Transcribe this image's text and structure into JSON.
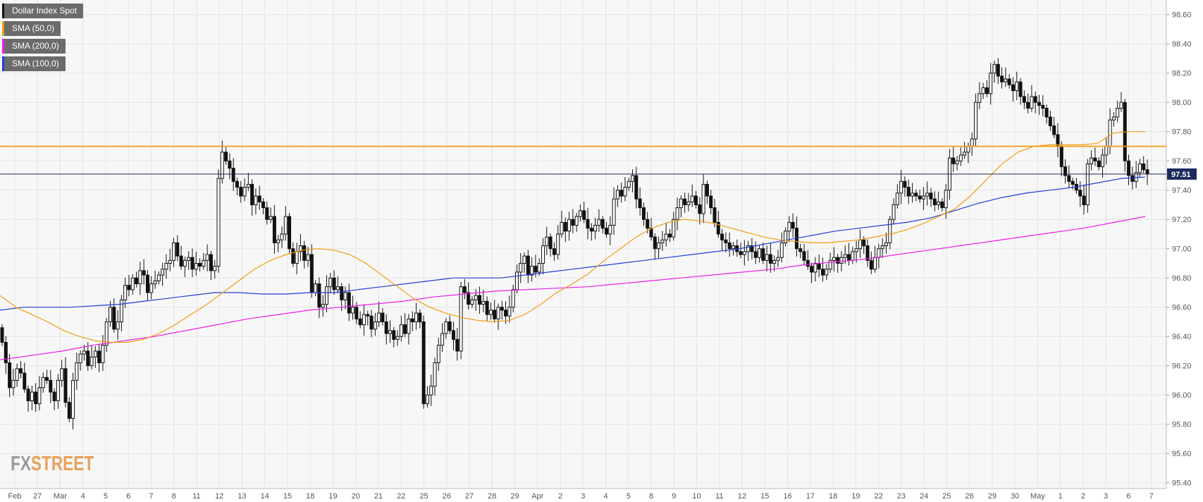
{
  "chart_data": {
    "type": "candlestick",
    "title": "Dollar Index Spot",
    "legend": [
      {
        "name": "Dollar Index Spot",
        "color": "#111111"
      },
      {
        "name": "SMA (50,0)",
        "color": "#f39c12"
      },
      {
        "name": "SMA (200,0)",
        "color": "#e91ee9"
      },
      {
        "name": "SMA (100,0)",
        "color": "#1f3fd6"
      }
    ],
    "legend_position": "top-left",
    "grid": true,
    "ylim": [
      95.36,
      98.7
    ],
    "y_ticks": [
      "98.60",
      "98.40",
      "98.20",
      "98.00",
      "97.80",
      "97.60",
      "97.40",
      "97.20",
      "97.00",
      "96.80",
      "96.60",
      "96.40",
      "96.20",
      "96.00",
      "95.80",
      "95.60",
      "95.40"
    ],
    "x_ticks": [
      "Feb",
      "27",
      "Mar",
      "4",
      "5",
      "6",
      "7",
      "8",
      "11",
      "12",
      "13",
      "14",
      "15",
      "18",
      "19",
      "20",
      "21",
      "22",
      "25",
      "26",
      "27",
      "28",
      "29",
      "Apr",
      "2",
      "3",
      "4",
      "5",
      "8",
      "9",
      "10",
      "11",
      "12",
      "15",
      "16",
      "17",
      "18",
      "19",
      "22",
      "23",
      "24",
      "25",
      "26",
      "29",
      "30",
      "May",
      "1",
      "2",
      "3",
      "6",
      "7"
    ],
    "current_price": "97.51",
    "horizontal_levels": [
      {
        "value": 97.7,
        "color": "#f39c12"
      },
      {
        "value": 97.51,
        "color": "#1c2a5e"
      }
    ],
    "close": [
      96.36,
      96.22,
      96.05,
      96.1,
      96.18,
      96.15,
      96.04,
      95.96,
      96.02,
      95.94,
      96.05,
      96.12,
      96.1,
      96.02,
      95.96,
      96.1,
      96.18,
      95.95,
      95.84,
      96.1,
      96.22,
      96.28,
      96.3,
      96.2,
      96.26,
      96.3,
      96.22,
      96.34,
      96.5,
      96.6,
      96.45,
      96.5,
      96.65,
      96.75,
      96.72,
      96.8,
      96.76,
      96.85,
      96.82,
      96.7,
      96.76,
      96.78,
      96.82,
      96.86,
      96.9,
      96.92,
      97.04,
      96.95,
      96.88,
      96.92,
      96.94,
      96.86,
      96.9,
      96.88,
      96.92,
      96.96,
      96.85,
      96.88,
      97.48,
      97.66,
      97.6,
      97.55,
      97.46,
      97.42,
      97.36,
      97.42,
      97.44,
      97.3,
      97.36,
      97.32,
      97.28,
      97.2,
      97.22,
      97.04,
      97.06,
      97.1,
      97.22,
      97.0,
      96.9,
      96.98,
      97.02,
      96.92,
      96.96,
      96.7,
      96.76,
      96.6,
      96.62,
      96.74,
      96.8,
      96.72,
      96.74,
      96.65,
      96.7,
      96.56,
      96.6,
      96.52,
      96.48,
      96.55,
      96.54,
      96.45,
      96.5,
      96.56,
      96.5,
      96.42,
      96.44,
      96.38,
      96.4,
      96.48,
      96.42,
      96.52,
      96.5,
      96.56,
      96.5,
      95.94,
      96.0,
      96.06,
      96.22,
      96.34,
      96.42,
      96.5,
      96.44,
      96.38,
      96.3,
      96.74,
      96.7,
      96.62,
      96.65,
      96.68,
      96.62,
      96.64,
      96.55,
      96.58,
      96.52,
      96.6,
      96.58,
      96.54,
      96.6,
      96.72,
      96.84,
      96.9,
      96.95,
      96.82,
      96.88,
      96.84,
      96.9,
      97.02,
      97.08,
      97.0,
      96.96,
      97.1,
      97.18,
      97.12,
      97.2,
      97.16,
      97.22,
      97.26,
      97.2,
      97.14,
      97.12,
      97.16,
      97.2,
      97.14,
      97.1,
      97.16,
      97.34,
      97.4,
      97.36,
      97.42,
      97.46,
      97.5,
      97.34,
      97.28,
      97.2,
      97.14,
      97.08,
      97.0,
      97.04,
      97.06,
      97.1,
      97.08,
      97.2,
      97.28,
      97.34,
      97.3,
      97.32,
      97.36,
      97.3,
      97.24,
      97.44,
      97.36,
      97.28,
      97.18,
      97.1,
      97.06,
      97.04,
      97.0,
      97.02,
      96.98,
      96.96,
      96.98,
      97.02,
      96.98,
      96.94,
      97.0,
      96.92,
      96.96,
      96.9,
      96.92,
      96.94,
      97.04,
      97.12,
      97.18,
      97.14,
      97.0,
      96.98,
      96.92,
      96.88,
      96.84,
      96.9,
      96.86,
      96.82,
      96.86,
      96.92,
      96.94,
      96.9,
      96.94,
      96.96,
      96.92,
      96.98,
      97.0,
      97.06,
      97.02,
      96.92,
      96.86,
      96.94,
      97.0,
      97.02,
      97.04,
      97.2,
      97.3,
      97.38,
      97.46,
      97.42,
      97.36,
      97.38,
      97.36,
      97.34,
      97.36,
      97.38,
      97.34,
      97.3,
      97.32,
      97.28,
      97.4,
      97.62,
      97.58,
      97.6,
      97.64,
      97.66,
      97.7,
      97.75,
      98.0,
      98.06,
      98.1,
      98.06,
      98.2,
      98.26,
      98.18,
      98.14,
      98.16,
      98.12,
      98.08,
      98.14,
      98.04,
      98.0,
      97.96,
      98.04,
      98.0,
      97.98,
      97.96,
      97.9,
      97.84,
      97.78,
      97.7,
      97.56,
      97.5,
      97.46,
      97.44,
      97.4,
      97.36,
      97.3,
      97.58,
      97.62,
      97.6,
      97.56,
      97.64,
      97.7,
      97.88,
      97.9,
      97.96,
      98.0,
      97.6,
      97.5,
      97.46,
      97.52,
      97.58,
      97.54,
      97.51
    ],
    "sma_50": [
      96.68,
      96.6,
      96.55,
      96.5,
      96.44,
      96.4,
      96.37,
      96.36,
      96.36,
      96.38,
      96.42,
      96.48,
      96.55,
      96.62,
      96.7,
      96.78,
      96.86,
      96.92,
      96.96,
      96.99,
      97.0,
      96.99,
      96.96,
      96.9,
      96.82,
      96.74,
      96.66,
      96.6,
      96.56,
      96.53,
      96.51,
      96.5,
      96.51,
      96.55,
      96.62,
      96.7,
      96.76,
      96.83,
      96.92,
      97.0,
      97.08,
      97.14,
      97.18,
      97.2,
      97.19,
      97.17,
      97.14,
      97.11,
      97.08,
      97.06,
      97.05,
      97.04,
      97.04,
      97.05,
      97.06,
      97.08,
      97.1,
      97.13,
      97.17,
      97.22,
      97.27,
      97.36,
      97.47,
      97.58,
      97.66,
      97.7,
      97.71,
      97.71,
      97.71,
      97.72,
      97.79,
      97.8,
      97.8
    ],
    "sma_100": [
      96.58,
      96.6,
      96.6,
      96.6,
      96.61,
      96.62,
      96.64,
      96.66,
      96.68,
      96.7,
      96.7,
      96.69,
      96.69,
      96.7,
      96.7,
      96.72,
      96.74,
      96.76,
      96.78,
      96.8,
      96.8,
      96.8,
      96.82,
      96.84,
      96.86,
      96.88,
      96.9,
      96.92,
      96.94,
      96.96,
      96.98,
      97.0,
      97.03,
      97.06,
      97.09,
      97.12,
      97.14,
      97.16,
      97.18,
      97.21,
      97.26,
      97.31,
      97.35,
      97.38,
      97.4,
      97.42,
      97.45,
      97.48,
      97.49
    ],
    "sma_200": [
      96.24,
      96.27,
      96.3,
      96.34,
      96.37,
      96.4,
      96.44,
      96.48,
      96.52,
      96.55,
      96.58,
      96.6,
      96.62,
      96.64,
      96.67,
      96.69,
      96.71,
      96.72,
      96.73,
      96.74,
      96.76,
      96.78,
      96.8,
      96.82,
      96.84,
      96.86,
      96.89,
      96.91,
      96.93,
      96.96,
      96.99,
      97.02,
      97.05,
      97.08,
      97.11,
      97.14,
      97.18,
      97.22
    ]
  },
  "branding": {
    "fx": "FX",
    "street": "STREET"
  }
}
